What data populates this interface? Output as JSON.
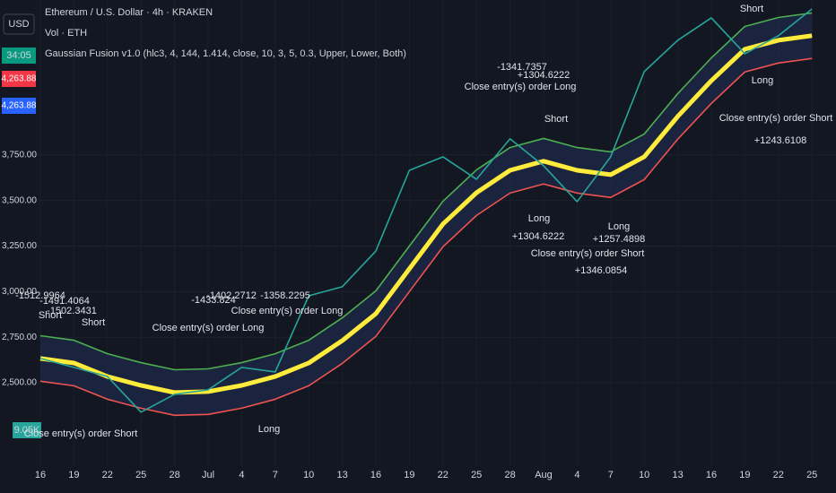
{
  "header": {
    "currency": "USD",
    "symbol": "Ethereum / U.S. Dollar · 4h · KRAKEN",
    "volume": "Vol · ETH",
    "indicator": "Gaussian Fusion v1.0 (hlc3, 4, 144, 1.414, close, 10, 3, 5, 0.3, Upper, Lower, Both)"
  },
  "badges": {
    "timer": "34:05",
    "price_a": "4,263.88",
    "price_b": "4,263.88",
    "volume": "9.05K"
  },
  "chart_data": {
    "type": "line",
    "categories": [
      "16",
      "19",
      "22",
      "25",
      "28",
      "Jul",
      "4",
      "7",
      "10",
      "13",
      "16",
      "19",
      "22",
      "25",
      "28",
      "Aug",
      "4",
      "7",
      "10",
      "13",
      "16",
      "19",
      "22",
      "25"
    ],
    "series": [
      {
        "name": "Upper",
        "color": "#4caf50",
        "values": [
          2758,
          2733,
          2659,
          2610,
          2571,
          2576,
          2610,
          2659,
          2733,
          2856,
          3004,
          3250,
          3496,
          3668,
          3791,
          3841,
          3791,
          3767,
          3865,
          4087,
          4283,
          4456,
          4505,
          4530
        ]
      },
      {
        "name": "Lower",
        "color": "#ef5350",
        "values": [
          2508,
          2483,
          2409,
          2360,
          2321,
          2326,
          2360,
          2409,
          2483,
          2606,
          2754,
          3000,
          3246,
          3418,
          3541,
          3591,
          3541,
          3517,
          3615,
          3837,
          4033,
          4206,
          4255,
          4280
        ]
      },
      {
        "name": "Basis",
        "color": "#ffeb3b",
        "values": [
          2633,
          2608,
          2534,
          2485,
          2446,
          2451,
          2485,
          2534,
          2608,
          2731,
          2879,
          3125,
          3371,
          3543,
          3666,
          3716,
          3666,
          3642,
          3740,
          3962,
          4158,
          4331,
          4380,
          4405
        ]
      },
      {
        "name": "Price",
        "color": "#26a69a",
        "values": [
          2633,
          2584,
          2534,
          2338,
          2436,
          2461,
          2584,
          2559,
          2977,
          3027,
          3223,
          3666,
          3740,
          3617,
          3839,
          3691,
          3494,
          3740,
          4208,
          4380,
          4503,
          4306,
          4405,
          4552
        ]
      }
    ],
    "ylim": [
      2042,
      4601
    ],
    "yticks": [
      {
        "value": 2500,
        "label": "2,500.00"
      },
      {
        "value": 2750,
        "label": "2,750.00"
      },
      {
        "value": 3000,
        "label": "3,000.00"
      },
      {
        "value": 3250,
        "label": "3,250.00"
      },
      {
        "value": 3500,
        "label": "3,500.00"
      },
      {
        "value": 3750,
        "label": "3,750.00"
      }
    ],
    "annotations": [
      "-1512.9964",
      "Short",
      "-1491.4064",
      "-1502.3431",
      "Short",
      "Close entry(s) order Long",
      "-1433.824",
      "-1402.2712",
      "-1358.2295",
      "Close entry(s) order Long",
      "-1341.7357",
      "+1304.6222",
      "Close entry(s) order Long",
      "Short",
      "Long",
      "+1304.6222",
      "Long",
      "+1257.4898",
      "Close entry(s) order Short",
      "+1346.0854",
      "Short",
      "Long",
      "Close entry(s) order Short",
      "+1243.6108",
      "Long",
      "Close entry(s) order Short"
    ]
  }
}
